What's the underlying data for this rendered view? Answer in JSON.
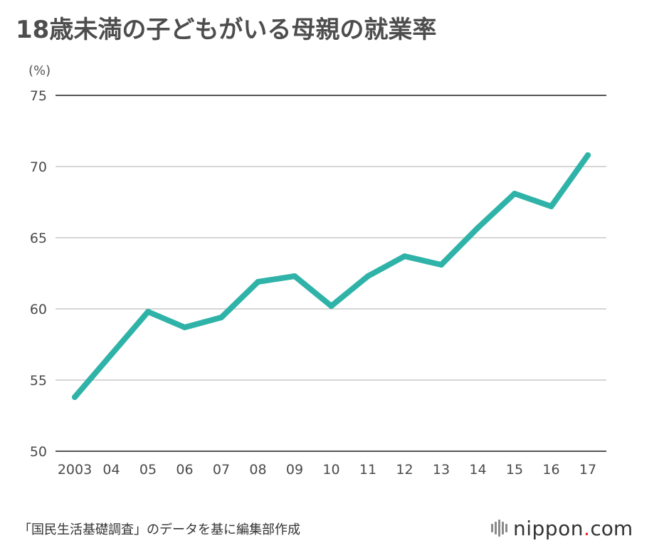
{
  "title": "18歳未満の子どもがいる母親の就業率",
  "source_note": "「国民生活基礎調査」のデータを基に編集部作成",
  "brand": {
    "name": "nippon",
    "dot": ".",
    "suffix": "com",
    "logo": "nippon-logo-icon",
    "dot_color": "#e51c23"
  },
  "colors": {
    "line": "#2fb3a8",
    "grid": "#c8c8c8",
    "axis": "#555555",
    "text": "#4a4a4a"
  },
  "chart_data": {
    "type": "line",
    "title": "18歳未満の子どもがいる母親の就業率",
    "unit_label": "(%)",
    "xlabel": "",
    "ylabel": "",
    "categories": [
      "2003",
      "04",
      "05",
      "06",
      "07",
      "08",
      "09",
      "10",
      "11",
      "12",
      "13",
      "14",
      "15",
      "16",
      "17"
    ],
    "series": [
      {
        "values": [
          53.8,
          56.8,
          59.8,
          58.7,
          59.4,
          61.9,
          62.3,
          60.2,
          62.3,
          63.7,
          63.1,
          65.7,
          68.1,
          67.2,
          70.8
        ]
      }
    ],
    "ylim": [
      50,
      75
    ],
    "yticks": [
      50,
      55,
      60,
      65,
      70,
      75
    ],
    "grid": true,
    "legend": "none"
  }
}
